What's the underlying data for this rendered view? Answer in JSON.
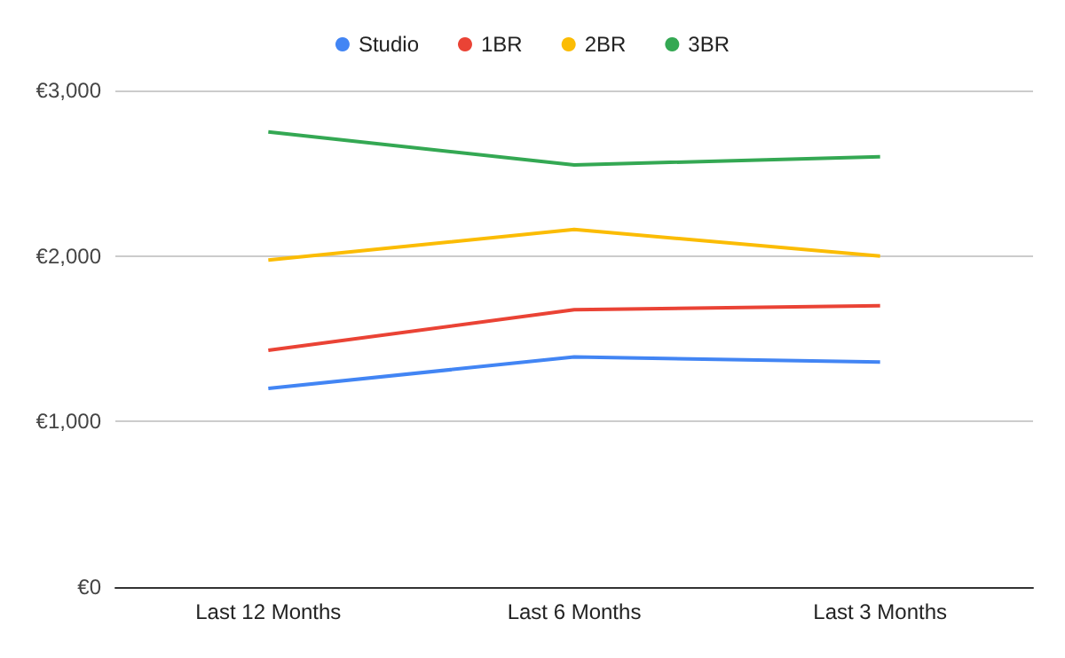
{
  "chart_data": {
    "type": "line",
    "categories": [
      "Last 12 Months",
      "Last 6 Months",
      "Last 3 Months"
    ],
    "series": [
      {
        "name": "Studio",
        "color": "#4285f4",
        "values": [
          1200,
          1390,
          1360
        ]
      },
      {
        "name": "1BR",
        "color": "#ea4335",
        "values": [
          1430,
          1675,
          1700
        ]
      },
      {
        "name": "2BR",
        "color": "#fbbc04",
        "values": [
          1975,
          2160,
          2000
        ]
      },
      {
        "name": "3BR",
        "color": "#34a853",
        "values": [
          2750,
          2550,
          2600
        ]
      }
    ],
    "ylim": [
      0,
      3000
    ],
    "yticks": [
      {
        "value": 0,
        "label": "€0"
      },
      {
        "value": 1000,
        "label": "€1,000"
      },
      {
        "value": 2000,
        "label": "€2,000"
      },
      {
        "value": 3000,
        "label": "€3,000"
      }
    ],
    "grid": "y",
    "legend": "top",
    "marker": "none",
    "line_style": "solid"
  }
}
